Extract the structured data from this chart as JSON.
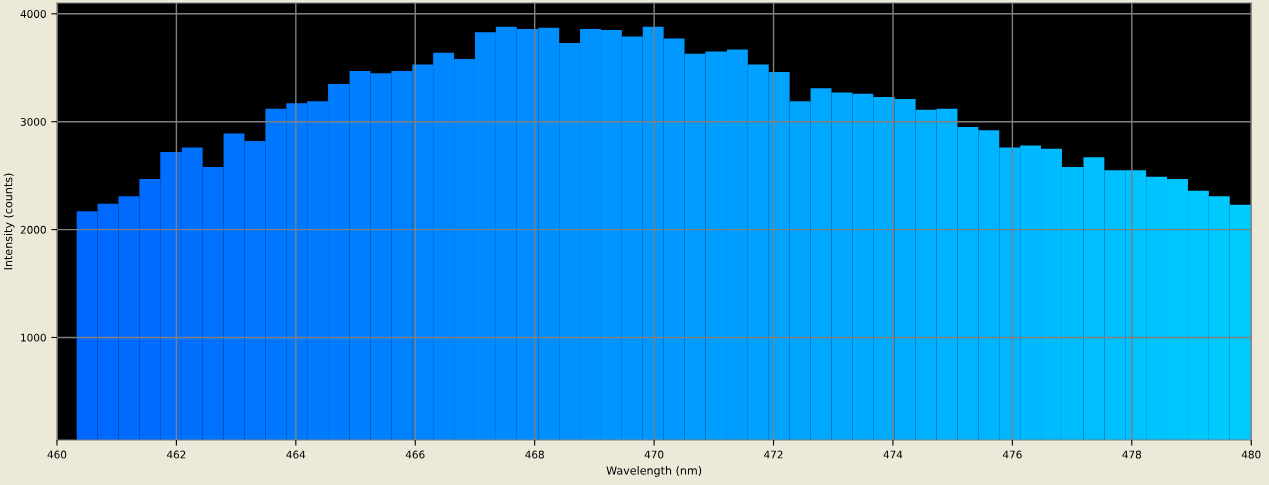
{
  "chart_data": {
    "type": "histogram",
    "xlabel": "Wavelength (nm)",
    "ylabel": "Intensity (counts)",
    "bins": [
      460.33,
      460.68,
      461.03,
      461.38,
      461.73,
      462.09,
      462.44,
      462.79,
      463.14,
      463.49,
      463.84,
      464.19,
      464.54,
      464.9,
      465.25,
      465.6,
      465.95,
      466.3,
      466.65,
      467.0,
      467.35,
      467.7,
      468.06,
      468.41,
      468.76,
      469.11,
      469.46,
      469.81,
      470.16,
      470.51,
      470.86,
      471.22,
      471.57,
      471.92,
      472.27,
      472.62,
      472.97,
      473.32,
      473.67,
      474.03,
      474.38,
      474.73,
      475.08,
      475.43,
      475.78,
      476.13,
      476.48,
      476.83,
      477.19,
      477.54,
      477.89,
      478.24,
      478.59,
      478.94,
      479.29,
      479.64,
      480.0
    ],
    "values": [
      2170,
      2240,
      2310,
      2470,
      2720,
      2760,
      2580,
      2890,
      2820,
      3120,
      3170,
      3190,
      3350,
      3470,
      3450,
      3470,
      3530,
      3640,
      3580,
      3830,
      3880,
      3860,
      3870,
      3730,
      3860,
      3850,
      3790,
      3880,
      3770,
      3630,
      3650,
      3670,
      3530,
      3460,
      3190,
      3310,
      3270,
      3260,
      3230,
      3210,
      3110,
      3120,
      2950,
      2920,
      2760,
      2780,
      2750,
      2580,
      2670,
      2550,
      2550,
      2490,
      2470,
      2360,
      2310,
      2230
    ],
    "colors": [
      "#0067ff",
      "#0069ff",
      "#006bff",
      "#006cff",
      "#006eff",
      "#0070ff",
      "#0072ff",
      "#0074ff",
      "#0076ff",
      "#0077ff",
      "#0079ff",
      "#007bff",
      "#007dff",
      "#007fff",
      "#0080ff",
      "#0082ff",
      "#0084ff",
      "#0086ff",
      "#0088ff",
      "#008aff",
      "#008bff",
      "#008dff",
      "#008fff",
      "#0091ff",
      "#0093ff",
      "#0095ff",
      "#0096ff",
      "#0098ff",
      "#009aff",
      "#009cff",
      "#009eff",
      "#009fff",
      "#00a1ff",
      "#00a3ff",
      "#00a5ff",
      "#00a7ff",
      "#00a9ff",
      "#00aaff",
      "#00acff",
      "#00aeff",
      "#00b0ff",
      "#00b2ff",
      "#00b3ff",
      "#00b5ff",
      "#00b7ff",
      "#00b9ff",
      "#00bbff",
      "#00bdff",
      "#00beff",
      "#00c0ff",
      "#00c2ff",
      "#00c4ff",
      "#00c6ff",
      "#00c7ff",
      "#00c9ff",
      "#00cbff"
    ],
    "xlim": [
      460,
      480
    ],
    "ylim": [
      50,
      4100
    ],
    "xticks": [
      460,
      462,
      464,
      466,
      468,
      470,
      472,
      474,
      476,
      478,
      480
    ],
    "yticks": [
      1000,
      2000,
      3000,
      4000
    ],
    "grid": true
  }
}
